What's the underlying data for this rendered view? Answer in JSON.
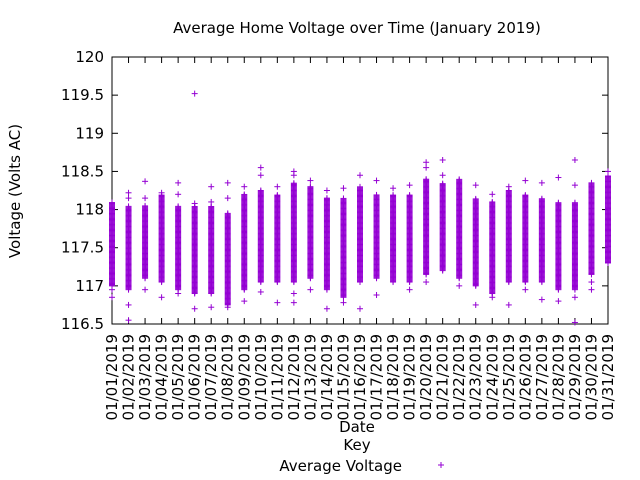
{
  "chart_data": {
    "type": "scatter",
    "title": "Average Home Voltage over Time (January 2019)",
    "xlabel": "Date",
    "ylabel": "Voltage (Volts AC)",
    "ylim": [
      116.5,
      120
    ],
    "yticks": [
      "116.5",
      "117",
      "117.5",
      "118",
      "118.5",
      "119",
      "119.5",
      "120"
    ],
    "grid": false,
    "legend_title": "Key",
    "legend_position": "bottom-center",
    "marker": "+",
    "color": "#9400d3",
    "categories": [
      "01/01/2019",
      "01/02/2019",
      "01/03/2019",
      "01/04/2019",
      "01/05/2019",
      "01/06/2019",
      "01/07/2019",
      "01/08/2019",
      "01/09/2019",
      "01/10/2019",
      "01/11/2019",
      "01/12/2019",
      "01/13/2019",
      "01/14/2019",
      "01/15/2019",
      "01/16/2019",
      "01/17/2019",
      "01/18/2019",
      "01/19/2019",
      "01/20/2019",
      "01/21/2019",
      "01/22/2019",
      "01/23/2019",
      "01/24/2019",
      "01/25/2019",
      "01/26/2019",
      "01/27/2019",
      "01/28/2019",
      "01/29/2019",
      "01/30/2019",
      "01/31/2019"
    ],
    "series": [
      {
        "name": "Average Voltage",
        "points_by_day": [
          {
            "low": 117.0,
            "high": 118.1,
            "extra": [
              116.85,
              117.5,
              117.95,
              116.95
            ]
          },
          {
            "low": 116.95,
            "high": 118.05,
            "extra": [
              116.55,
              116.75,
              118.15,
              118.22
            ]
          },
          {
            "low": 117.1,
            "high": 118.05,
            "extra": [
              116.95,
              118.15,
              118.37
            ]
          },
          {
            "low": 117.05,
            "high": 118.2,
            "extra": [
              116.85,
              118.22
            ]
          },
          {
            "low": 116.95,
            "high": 118.05,
            "extra": [
              116.9,
              118.2,
              118.35
            ]
          },
          {
            "low": 116.9,
            "high": 118.05,
            "extra": [
              116.7,
              118.08,
              119.52
            ]
          },
          {
            "low": 116.9,
            "high": 118.05,
            "extra": [
              116.72,
              118.1,
              118.3
            ]
          },
          {
            "low": 116.75,
            "high": 117.95,
            "extra": [
              116.72,
              118.15,
              118.35
            ]
          },
          {
            "low": 116.95,
            "high": 118.2,
            "extra": [
              116.8,
              118.3
            ]
          },
          {
            "low": 117.05,
            "high": 118.25,
            "extra": [
              116.92,
              118.45,
              118.55
            ]
          },
          {
            "low": 117.05,
            "high": 118.2,
            "extra": [
              116.78,
              118.3
            ]
          },
          {
            "low": 117.05,
            "high": 118.35,
            "extra": [
              116.78,
              116.9,
              118.45,
              118.5
            ]
          },
          {
            "low": 117.1,
            "high": 118.3,
            "extra": [
              116.95,
              118.38
            ]
          },
          {
            "low": 116.95,
            "high": 118.15,
            "extra": [
              116.7,
              118.25
            ]
          },
          {
            "low": 116.85,
            "high": 118.15,
            "extra": [
              116.78,
              118.28
            ]
          },
          {
            "low": 117.05,
            "high": 118.3,
            "extra": [
              116.7,
              118.45
            ]
          },
          {
            "low": 117.1,
            "high": 118.2,
            "extra": [
              116.88,
              118.38
            ]
          },
          {
            "low": 117.05,
            "high": 118.2,
            "extra": [
              118.28
            ]
          },
          {
            "low": 117.05,
            "high": 118.2,
            "extra": [
              116.95,
              118.32
            ]
          },
          {
            "low": 117.15,
            "high": 118.4,
            "extra": [
              117.05,
              118.55,
              118.62
            ]
          },
          {
            "low": 117.2,
            "high": 118.35,
            "extra": [
              118.45,
              118.65
            ]
          },
          {
            "low": 117.1,
            "high": 118.4,
            "extra": [
              117.0
            ]
          },
          {
            "low": 117.0,
            "high": 118.15,
            "extra": [
              116.75,
              118.32
            ]
          },
          {
            "low": 116.9,
            "high": 118.1,
            "extra": [
              116.85,
              118.2
            ]
          },
          {
            "low": 117.05,
            "high": 118.25,
            "extra": [
              116.75,
              118.3
            ]
          },
          {
            "low": 117.05,
            "high": 118.2,
            "extra": [
              116.95,
              118.38
            ]
          },
          {
            "low": 117.05,
            "high": 118.15,
            "extra": [
              116.82,
              118.35
            ]
          },
          {
            "low": 116.95,
            "high": 118.1,
            "extra": [
              116.8,
              118.42
            ]
          },
          {
            "low": 116.95,
            "high": 118.1,
            "extra": [
              116.52,
              116.85,
              118.32,
              118.65
            ]
          },
          {
            "low": 117.15,
            "high": 118.35,
            "extra": [
              117.05,
              116.95
            ]
          },
          {
            "low": 117.3,
            "high": 118.45,
            "extra": [
              117.35,
              118.5
            ]
          }
        ]
      }
    ]
  }
}
